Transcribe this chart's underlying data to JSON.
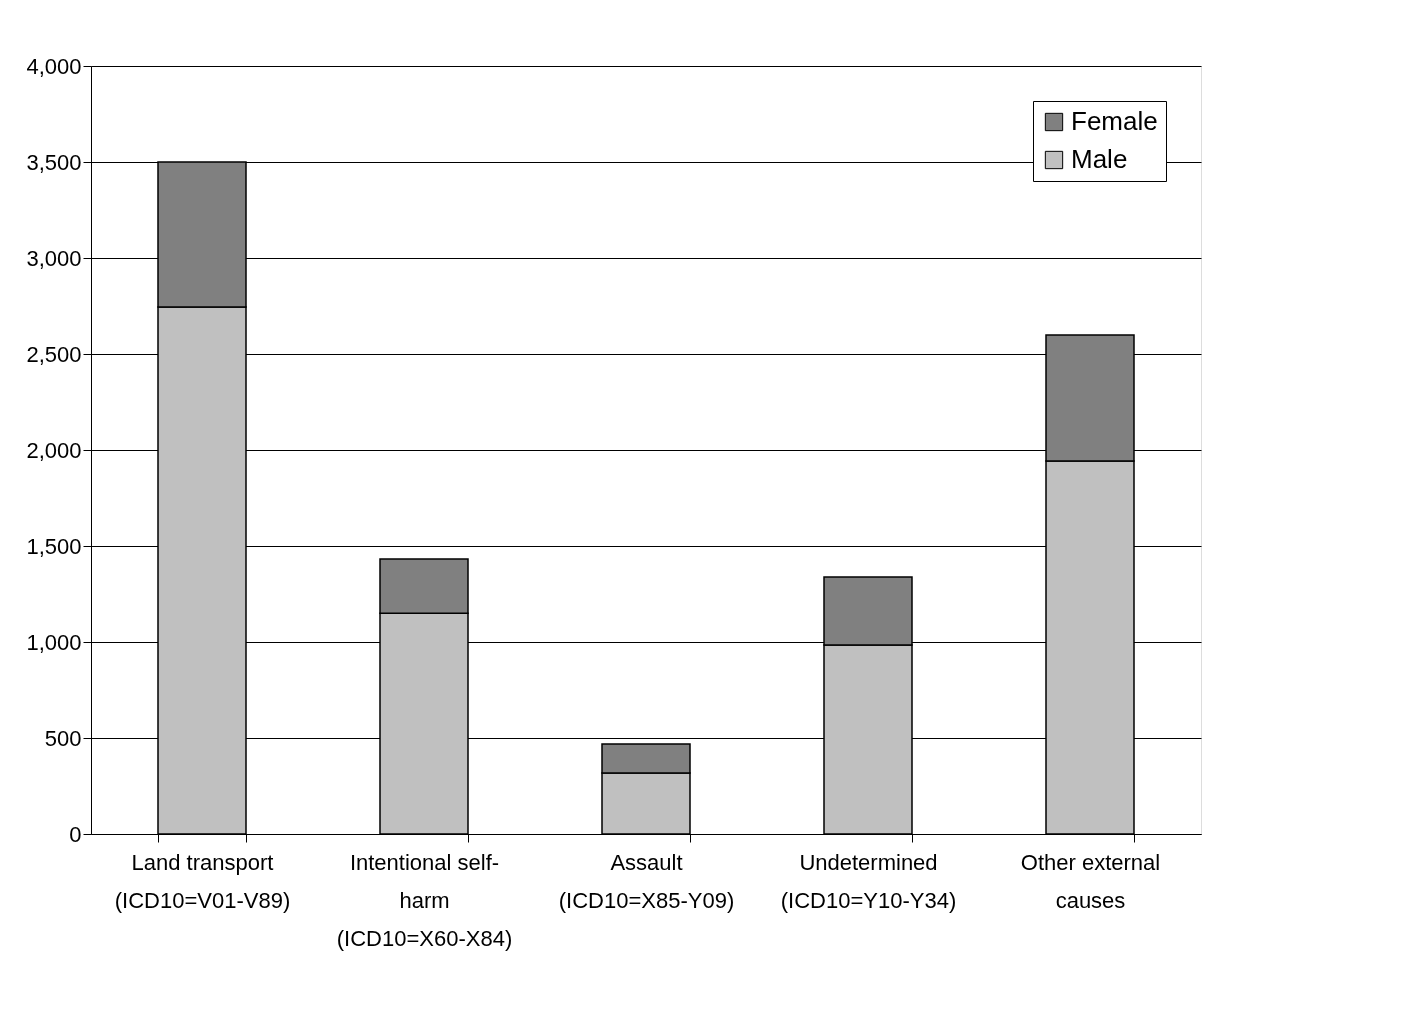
{
  "chart_data": {
    "type": "bar",
    "stacked": true,
    "categories": [
      "Land transport (ICD10=V01-V89)",
      "Intentional self-harm (ICD10=X60-X84)",
      "Assault (ICD10=X85-Y09)",
      "Undetermined (ICD10=Y10-Y34)",
      "Other external causes"
    ],
    "series": [
      {
        "name": "Male",
        "color": "#c0c0c0",
        "values": [
          2745,
          1150,
          318,
          984,
          1943
        ]
      },
      {
        "name": "Female",
        "color": "#808080",
        "values": [
          755,
          282,
          151,
          355,
          656
        ]
      }
    ],
    "ylim": [
      0,
      4000
    ],
    "yticks": [
      0,
      {
        "value": 500,
        "label": "500"
      },
      {
        "value": 1000,
        "label": "1,000"
      },
      {
        "value": 1500,
        "label": "1,500"
      },
      {
        "value": 2000,
        "label": "2,000"
      },
      {
        "value": 2500,
        "label": "2,500"
      },
      {
        "value": 3000,
        "label": "3,000"
      },
      {
        "value": 3500,
        "label": "3,500"
      },
      {
        "value": 4000,
        "label": "4,000"
      }
    ],
    "grid": "y",
    "legend": "top right"
  }
}
